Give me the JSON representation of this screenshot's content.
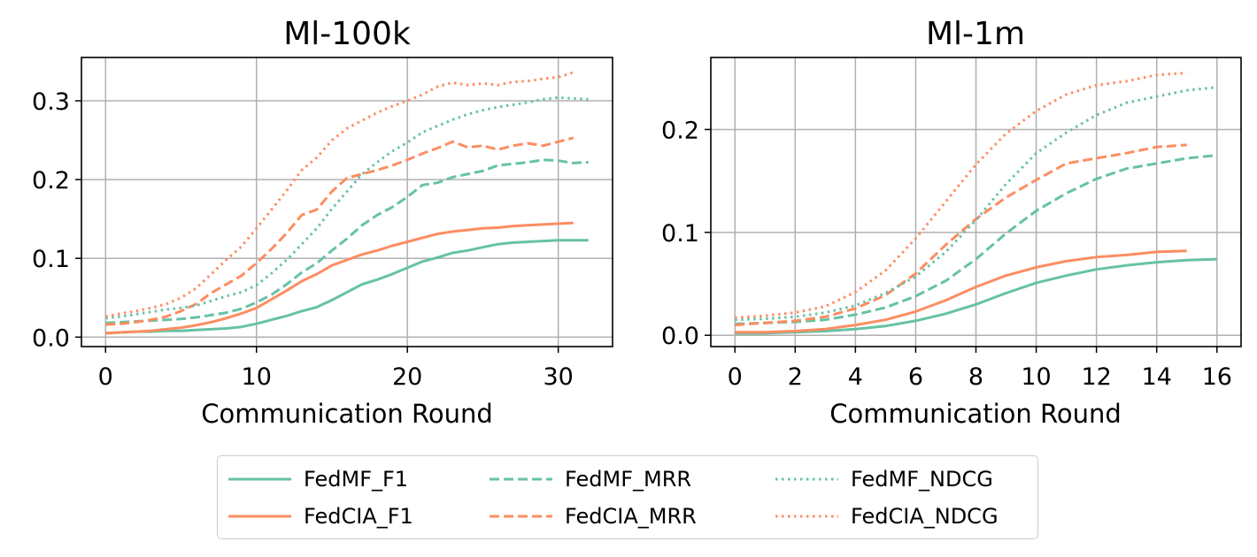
{
  "colors": {
    "fedmf": "#66c2a5",
    "fedcia": "#fc8d62",
    "grid": "#b0b0b0"
  },
  "chart_data": [
    {
      "type": "line",
      "title": "Ml-100k",
      "xlabel": "Communication Round",
      "ylabel": "",
      "xlim": [
        -1.6,
        33.6
      ],
      "ylim": [
        -0.012,
        0.355
      ],
      "xticks": [
        0,
        10,
        20,
        30
      ],
      "yticks": [
        0.0,
        0.1,
        0.2,
        0.3
      ],
      "xtick_labels": [
        "0",
        "10",
        "20",
        "30"
      ],
      "ytick_labels": [
        "0.0",
        "0.1",
        "0.2",
        "0.3"
      ],
      "grid": true,
      "series": [
        {
          "name": "FedMF_F1",
          "color": "#66c2a5",
          "dash": "solid",
          "x": [
            0,
            1,
            2,
            3,
            4,
            5,
            6,
            7,
            8,
            9,
            10,
            11,
            12,
            13,
            14,
            15,
            16,
            17,
            18,
            19,
            20,
            21,
            22,
            23,
            24,
            25,
            26,
            27,
            28,
            29,
            30,
            31,
            32
          ],
          "y": [
            0.005,
            0.006,
            0.007,
            0.007,
            0.008,
            0.008,
            0.009,
            0.01,
            0.011,
            0.013,
            0.017,
            0.022,
            0.027,
            0.033,
            0.038,
            0.047,
            0.057,
            0.067,
            0.073,
            0.08,
            0.088,
            0.096,
            0.101,
            0.107,
            0.11,
            0.114,
            0.118,
            0.12,
            0.121,
            0.122,
            0.123,
            0.123,
            0.123
          ]
        },
        {
          "name": "FedCIA_F1",
          "color": "#fc8d62",
          "dash": "solid",
          "x": [
            0,
            1,
            2,
            3,
            4,
            5,
            6,
            7,
            8,
            9,
            10,
            11,
            12,
            13,
            14,
            15,
            16,
            17,
            18,
            19,
            20,
            21,
            22,
            23,
            24,
            25,
            26,
            27,
            28,
            29,
            30,
            31
          ],
          "y": [
            0.005,
            0.006,
            0.007,
            0.008,
            0.01,
            0.012,
            0.015,
            0.019,
            0.024,
            0.03,
            0.037,
            0.048,
            0.059,
            0.071,
            0.08,
            0.091,
            0.098,
            0.105,
            0.11,
            0.116,
            0.121,
            0.126,
            0.131,
            0.134,
            0.136,
            0.138,
            0.139,
            0.141,
            0.142,
            0.143,
            0.144,
            0.145
          ]
        },
        {
          "name": "FedMF_MRR",
          "color": "#66c2a5",
          "dash": "dashed",
          "x": [
            0,
            1,
            2,
            3,
            4,
            5,
            6,
            7,
            8,
            9,
            10,
            11,
            12,
            13,
            14,
            15,
            16,
            17,
            18,
            19,
            20,
            21,
            22,
            23,
            24,
            25,
            26,
            27,
            28,
            29,
            30,
            31,
            32
          ],
          "y": [
            0.018,
            0.019,
            0.02,
            0.021,
            0.022,
            0.023,
            0.025,
            0.028,
            0.031,
            0.036,
            0.044,
            0.054,
            0.067,
            0.082,
            0.094,
            0.11,
            0.125,
            0.142,
            0.155,
            0.165,
            0.178,
            0.193,
            0.196,
            0.203,
            0.207,
            0.211,
            0.218,
            0.22,
            0.222,
            0.225,
            0.224,
            0.221,
            0.222
          ]
        },
        {
          "name": "FedCIA_MRR",
          "color": "#fc8d62",
          "dash": "dashed",
          "x": [
            0,
            1,
            2,
            3,
            4,
            5,
            6,
            7,
            8,
            9,
            10,
            11,
            12,
            13,
            14,
            15,
            16,
            17,
            18,
            19,
            20,
            21,
            22,
            23,
            24,
            25,
            26,
            27,
            28,
            29,
            30,
            31
          ],
          "y": [
            0.016,
            0.017,
            0.019,
            0.022,
            0.026,
            0.033,
            0.042,
            0.056,
            0.067,
            0.078,
            0.094,
            0.112,
            0.132,
            0.155,
            0.162,
            0.185,
            0.202,
            0.207,
            0.212,
            0.218,
            0.225,
            0.233,
            0.24,
            0.248,
            0.241,
            0.243,
            0.238,
            0.243,
            0.246,
            0.243,
            0.248,
            0.253
          ]
        },
        {
          "name": "FedMF_NDCG",
          "color": "#66c2a5",
          "dash": "dotted",
          "x": [
            0,
            1,
            2,
            3,
            4,
            5,
            6,
            7,
            8,
            9,
            10,
            11,
            12,
            13,
            14,
            15,
            16,
            17,
            18,
            19,
            20,
            21,
            22,
            23,
            24,
            25,
            26,
            27,
            28,
            29,
            30,
            31,
            32
          ],
          "y": [
            0.024,
            0.026,
            0.029,
            0.032,
            0.035,
            0.037,
            0.04,
            0.046,
            0.052,
            0.057,
            0.066,
            0.081,
            0.098,
            0.118,
            0.138,
            0.163,
            0.185,
            0.207,
            0.222,
            0.236,
            0.247,
            0.26,
            0.268,
            0.276,
            0.283,
            0.288,
            0.292,
            0.295,
            0.298,
            0.302,
            0.304,
            0.303,
            0.302
          ]
        },
        {
          "name": "FedCIA_NDCG",
          "color": "#fc8d62",
          "dash": "dotted",
          "x": [
            0,
            1,
            2,
            3,
            4,
            5,
            6,
            7,
            8,
            9,
            10,
            11,
            12,
            13,
            14,
            15,
            16,
            17,
            18,
            19,
            20,
            21,
            22,
            23,
            24,
            25,
            26,
            27,
            28,
            29,
            30,
            31
          ],
          "y": [
            0.026,
            0.03,
            0.033,
            0.037,
            0.042,
            0.05,
            0.062,
            0.08,
            0.098,
            0.115,
            0.138,
            0.162,
            0.186,
            0.212,
            0.228,
            0.25,
            0.265,
            0.275,
            0.285,
            0.293,
            0.3,
            0.308,
            0.318,
            0.323,
            0.32,
            0.322,
            0.32,
            0.324,
            0.325,
            0.328,
            0.33,
            0.336
          ]
        }
      ]
    },
    {
      "type": "line",
      "title": "Ml-1m",
      "xlabel": "Communication Round",
      "ylabel": "",
      "xlim": [
        -0.8,
        16.8
      ],
      "ylim": [
        -0.011,
        0.27
      ],
      "xticks": [
        0,
        2,
        4,
        6,
        8,
        10,
        12,
        14,
        16
      ],
      "yticks": [
        0.0,
        0.1,
        0.2
      ],
      "xtick_labels": [
        "0",
        "2",
        "4",
        "6",
        "8",
        "10",
        "12",
        "14",
        "16"
      ],
      "ytick_labels": [
        "0.0",
        "0.1",
        "0.2"
      ],
      "grid": true,
      "series": [
        {
          "name": "FedMF_F1",
          "color": "#66c2a5",
          "dash": "solid",
          "x": [
            0,
            1,
            2,
            3,
            4,
            5,
            6,
            7,
            8,
            9,
            10,
            11,
            12,
            13,
            14,
            15,
            16
          ],
          "y": [
            0.002,
            0.002,
            0.003,
            0.004,
            0.006,
            0.009,
            0.014,
            0.021,
            0.03,
            0.041,
            0.051,
            0.058,
            0.064,
            0.068,
            0.071,
            0.073,
            0.074
          ]
        },
        {
          "name": "FedCIA_F1",
          "color": "#fc8d62",
          "dash": "solid",
          "x": [
            0,
            1,
            2,
            3,
            4,
            5,
            6,
            7,
            8,
            9,
            10,
            11,
            12,
            13,
            14,
            15
          ],
          "y": [
            0.003,
            0.003,
            0.004,
            0.006,
            0.01,
            0.015,
            0.023,
            0.034,
            0.047,
            0.058,
            0.066,
            0.072,
            0.076,
            0.078,
            0.081,
            0.082
          ]
        },
        {
          "name": "FedMF_MRR",
          "color": "#66c2a5",
          "dash": "dashed",
          "x": [
            0,
            1,
            2,
            3,
            4,
            5,
            6,
            7,
            8,
            9,
            10,
            11,
            12,
            13,
            14,
            15,
            16
          ],
          "y": [
            0.011,
            0.012,
            0.013,
            0.015,
            0.02,
            0.027,
            0.038,
            0.053,
            0.074,
            0.099,
            0.121,
            0.138,
            0.152,
            0.162,
            0.167,
            0.172,
            0.175
          ]
        },
        {
          "name": "FedCIA_MRR",
          "color": "#fc8d62",
          "dash": "dashed",
          "x": [
            0,
            1,
            2,
            3,
            4,
            5,
            6,
            7,
            8,
            9,
            10,
            11,
            12,
            13,
            14,
            15
          ],
          "y": [
            0.01,
            0.012,
            0.014,
            0.018,
            0.026,
            0.039,
            0.06,
            0.088,
            0.113,
            0.134,
            0.151,
            0.167,
            0.172,
            0.177,
            0.183,
            0.185
          ]
        },
        {
          "name": "FedMF_NDCG",
          "color": "#66c2a5",
          "dash": "dotted",
          "x": [
            0,
            1,
            2,
            3,
            4,
            5,
            6,
            7,
            8,
            9,
            10,
            11,
            12,
            13,
            14,
            15,
            16
          ],
          "y": [
            0.015,
            0.016,
            0.018,
            0.022,
            0.029,
            0.041,
            0.057,
            0.081,
            0.112,
            0.147,
            0.177,
            0.197,
            0.214,
            0.226,
            0.232,
            0.238,
            0.241
          ]
        },
        {
          "name": "FedCIA_NDCG",
          "color": "#fc8d62",
          "dash": "dotted",
          "x": [
            0,
            1,
            2,
            3,
            4,
            5,
            6,
            7,
            8,
            9,
            10,
            11,
            12,
            13,
            14,
            15
          ],
          "y": [
            0.017,
            0.019,
            0.022,
            0.028,
            0.042,
            0.063,
            0.094,
            0.13,
            0.166,
            0.196,
            0.218,
            0.234,
            0.243,
            0.247,
            0.253,
            0.255
          ]
        }
      ]
    }
  ],
  "legend": {
    "placement": "bottom-center",
    "items": [
      {
        "label": "FedMF_F1",
        "color": "#66c2a5",
        "dash": "solid"
      },
      {
        "label": "FedMF_MRR",
        "color": "#66c2a5",
        "dash": "dashed"
      },
      {
        "label": "FedMF_NDCG",
        "color": "#66c2a5",
        "dash": "dotted"
      },
      {
        "label": "FedCIA_F1",
        "color": "#fc8d62",
        "dash": "solid"
      },
      {
        "label": "FedCIA_MRR",
        "color": "#fc8d62",
        "dash": "dashed"
      },
      {
        "label": "FedCIA_NDCG",
        "color": "#fc8d62",
        "dash": "dotted"
      }
    ]
  }
}
